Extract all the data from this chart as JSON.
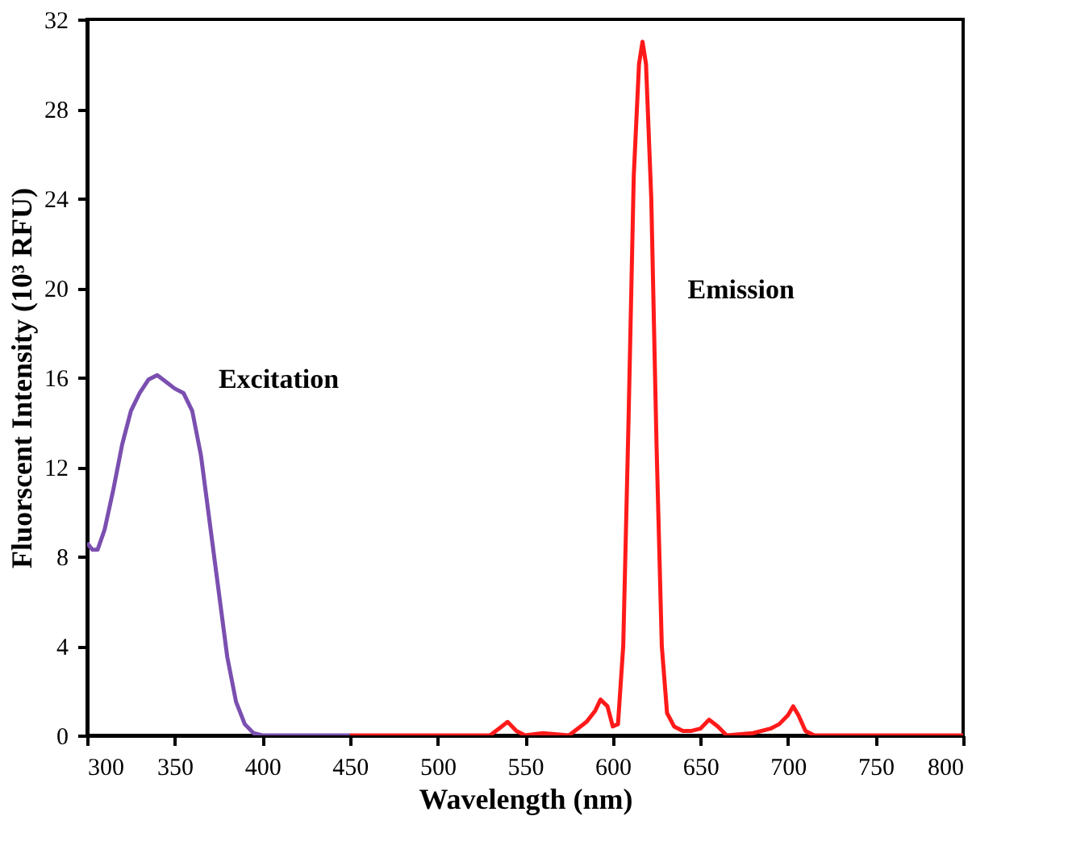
{
  "chart_data": {
    "type": "line",
    "xlabel": "Wavelength (nm)",
    "ylabel": "Fluorscent Intensity (10³ RFU)",
    "xlim": [
      300,
      800
    ],
    "ylim": [
      0,
      32
    ],
    "xticks": [
      300,
      350,
      400,
      450,
      500,
      550,
      600,
      650,
      700,
      750,
      800
    ],
    "yticks": [
      0,
      4,
      8,
      12,
      16,
      20,
      24,
      28,
      32
    ],
    "grid": false,
    "line_style": "solid",
    "marker": "none",
    "series": [
      {
        "color": "#7b4fb0",
        "x": [
          300,
          303,
          306,
          310,
          315,
          320,
          325,
          330,
          335,
          340,
          345,
          350,
          355,
          360,
          365,
          370,
          375,
          380,
          385,
          390,
          395,
          400,
          410,
          430,
          450
        ],
        "values": [
          8.6,
          8.3,
          8.3,
          9.2,
          11.0,
          13.0,
          14.5,
          15.3,
          15.9,
          16.1,
          15.8,
          15.5,
          15.3,
          14.5,
          12.5,
          9.5,
          6.5,
          3.5,
          1.5,
          0.5,
          0.1,
          0.0,
          0.0,
          0.0,
          0.0
        ]
      },
      {
        "color": "#ff1a1a",
        "x": [
          450,
          500,
          530,
          535,
          540,
          545,
          550,
          560,
          575,
          580,
          585,
          590,
          593,
          597,
          600,
          603,
          606,
          609,
          612,
          615,
          617,
          619,
          622,
          625,
          628,
          631,
          635,
          640,
          645,
          650,
          655,
          660,
          665,
          680,
          690,
          695,
          700,
          703,
          706,
          710,
          715,
          730,
          800
        ],
        "values": [
          0.0,
          0.0,
          0.0,
          0.3,
          0.6,
          0.2,
          0.0,
          0.1,
          0.0,
          0.3,
          0.6,
          1.1,
          1.6,
          1.3,
          0.4,
          0.5,
          4.0,
          14.0,
          25.0,
          30.0,
          31.0,
          30.0,
          24.0,
          13.0,
          4.0,
          1.0,
          0.4,
          0.2,
          0.2,
          0.3,
          0.7,
          0.4,
          0.0,
          0.1,
          0.3,
          0.5,
          0.9,
          1.3,
          0.9,
          0.2,
          0.0,
          0.0,
          0.0
        ]
      }
    ],
    "annotations": [
      "Excitation",
      "Emission"
    ]
  }
}
